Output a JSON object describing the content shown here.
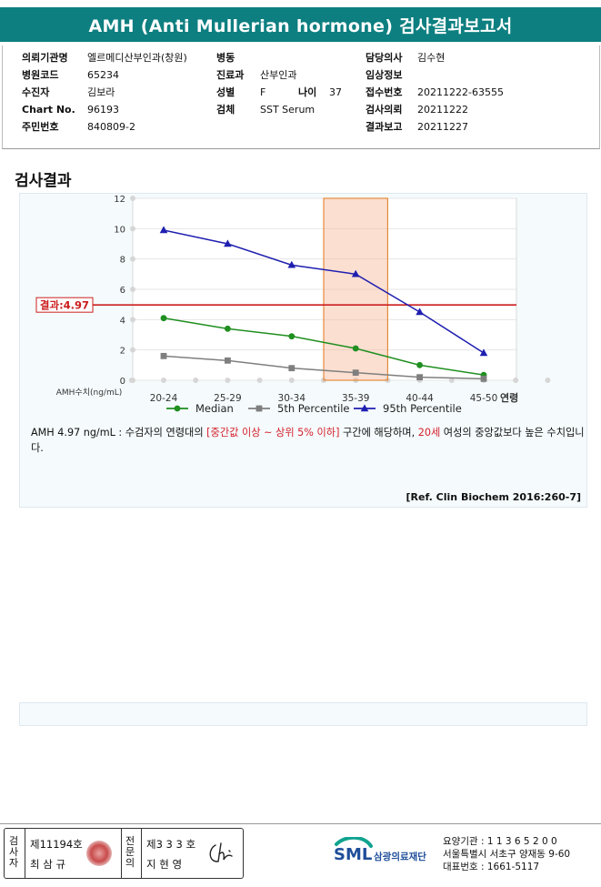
{
  "report": {
    "title": "AMH (Anti Mullerian hormone) 검사결과보고서"
  },
  "info": {
    "col1": [
      {
        "label": "의뢰기관명",
        "value": "엘르메디산부인과(창원)"
      },
      {
        "label": "병원코드",
        "value": "65234"
      },
      {
        "label": "수진자",
        "value": "김보라"
      },
      {
        "label": "Chart No.",
        "value": "96193"
      },
      {
        "label": "주민번호",
        "value": "840809-2"
      }
    ],
    "col2": [
      {
        "label": "병동",
        "value": ""
      },
      {
        "label": "진료과",
        "value": "산부인과"
      },
      {
        "label": "성별",
        "value": "F"
      },
      {
        "label": "검체",
        "value": "SST Serum"
      }
    ],
    "age": {
      "label": "나이",
      "value": "37"
    },
    "col3": [
      {
        "label": "담당의사",
        "value": "김수현"
      },
      {
        "label": "임상정보",
        "value": ""
      },
      {
        "label": "접수번호",
        "value": "20211222-63555"
      },
      {
        "label": "검사의뢰",
        "value": "20211222"
      },
      {
        "label": "결과보고",
        "value": "20211227"
      }
    ]
  },
  "section": {
    "title": "검사결과"
  },
  "chart_data": {
    "type": "line",
    "categories": [
      "20-24",
      "25-29",
      "30-34",
      "35-39",
      "40-44",
      "45-50"
    ],
    "x_axis_suffix": "연령",
    "ylabel": "AMH수치(ng/mL)",
    "ylim": [
      0,
      12
    ],
    "yticks": [
      0,
      2,
      4,
      6,
      8,
      10,
      12
    ],
    "grid": true,
    "series": [
      {
        "name": "Median",
        "color": "#1f8f1f",
        "marker": "circle",
        "values": [
          4.1,
          3.4,
          2.9,
          2.1,
          1.0,
          0.35
        ]
      },
      {
        "name": "5th Percentile",
        "color": "#7f7f7f",
        "marker": "square",
        "values": [
          1.6,
          1.3,
          0.8,
          0.5,
          0.2,
          0.1
        ]
      },
      {
        "name": "95th Percentile",
        "color": "#1f1fb0",
        "marker": "triangle",
        "values": [
          9.9,
          9.0,
          7.6,
          7.0,
          4.5,
          1.8
        ]
      }
    ],
    "highlight_category": "35-39",
    "result": {
      "label": "결과:4.97",
      "value": 4.97,
      "color": "#cc1f1f"
    },
    "legend_position": "bottom"
  },
  "comment": {
    "p1": "AMH  4.97 ng/mL : 수검자의 연령대의 ",
    "red1": "[중간값 이상 ~ 상위 5% 이하]",
    "p2": " 구간에 해당하며, ",
    "red2": "20세",
    "p3": " 여성의 중앙값보다 높은 수치입니다."
  },
  "reference": "[Ref. Clin Biochem 2016:260-7]",
  "signatures": {
    "tester_label": "검사자",
    "tester_no": "제11194호",
    "tester_name": "최 삼 규",
    "doctor_label": "전문의",
    "doctor_no": "제3 3 3 호",
    "doctor_name": "지 현 영"
  },
  "institution": {
    "logo_text": "SML",
    "logo_sub": "삼광의료재단",
    "line1": "요양기관 : 1 1 3 6 5 2 0 0",
    "line2": "서울특별시 서초구 양재동 9-60",
    "line3": "대표번호 : 1661-5117"
  }
}
